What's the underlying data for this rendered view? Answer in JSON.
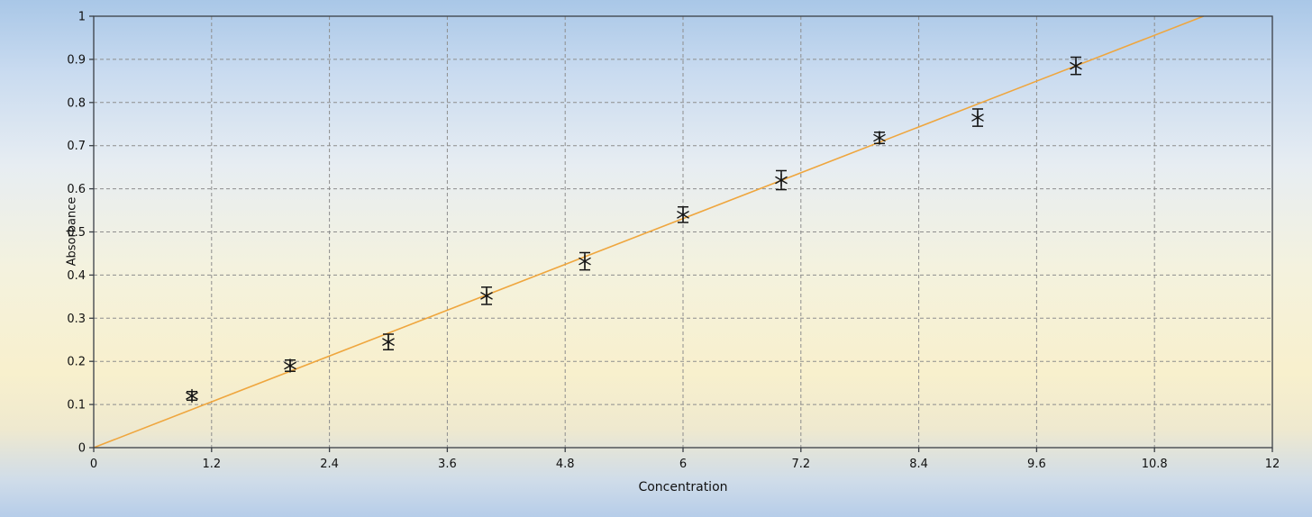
{
  "chart_data": {
    "type": "scatter",
    "title": "",
    "xlabel": "Concentration",
    "ylabel": "Absorbance",
    "xlim": [
      0,
      12
    ],
    "ylim": [
      0,
      1
    ],
    "xticks": [
      0,
      1.2,
      2.4,
      3.6,
      4.8,
      6,
      7.2,
      8.4,
      9.6,
      10.8,
      12
    ],
    "yticks": [
      0,
      0.1,
      0.2,
      0.3,
      0.4,
      0.5,
      0.6,
      0.7,
      0.8,
      0.9,
      1
    ],
    "grid": true,
    "legend": "none",
    "points": {
      "x": [
        1,
        2,
        3,
        4,
        5,
        6,
        7,
        8,
        9,
        10
      ],
      "y": [
        0.12,
        0.19,
        0.245,
        0.352,
        0.432,
        0.54,
        0.62,
        0.718,
        0.765,
        0.885
      ],
      "yerr": [
        0.01,
        0.013,
        0.018,
        0.02,
        0.02,
        0.018,
        0.022,
        0.013,
        0.02,
        0.02
      ]
    },
    "fit_line": {
      "x": [
        0,
        11.3
      ],
      "y": [
        0,
        1.0
      ]
    },
    "colors": {
      "marker": "#141414",
      "error_bar": "#141414",
      "fit_line": "#efa63e",
      "grid": "#8d8d8d",
      "border": "#3a3f46",
      "tick": "#3a3f46"
    }
  }
}
